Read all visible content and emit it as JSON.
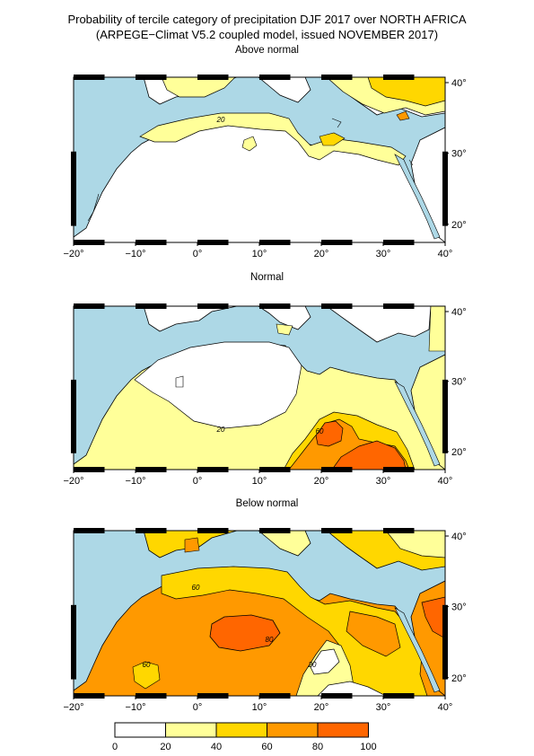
{
  "title": "Probability of tercile category of precipitation DJF 2017 over NORTH AFRICA",
  "subtitle": "(ARPEGE−Climat V5.2 coupled model, issued NOVEMBER 2017)",
  "colors": {
    "sea": "#add8e6",
    "c0_20": "#ffffff",
    "c20_40": "#ffff99",
    "c40_60": "#ffd700",
    "c60_80": "#ff9900",
    "c80_100": "#ff6600"
  },
  "panels": [
    {
      "title": "Above normal",
      "contour_labels": [
        "20"
      ]
    },
    {
      "title": "Normal",
      "contour_labels": [
        "20",
        "60"
      ]
    },
    {
      "title": "Below normal",
      "contour_labels": [
        "60",
        "80",
        "60",
        "20"
      ]
    }
  ],
  "x_ticks": [
    "−20°",
    "−10°",
    "0°",
    "10°",
    "20°",
    "30°",
    "40°"
  ],
  "y_ticks": [
    "40°",
    "30°",
    "20°"
  ],
  "legend": {
    "ticks": [
      "0",
      "20",
      "40",
      "60",
      "80",
      "100"
    ]
  }
}
